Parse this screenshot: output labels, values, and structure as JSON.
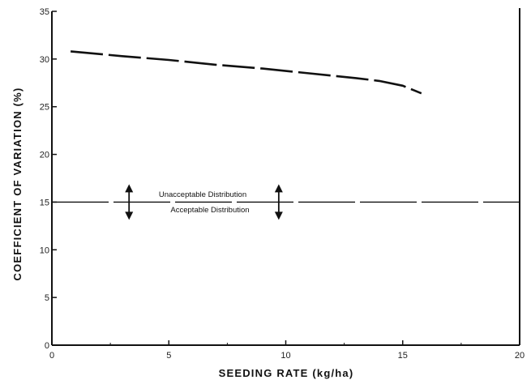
{
  "chart_data": {
    "type": "line",
    "xlabel": "SEEDING RATE (kg/ha)",
    "ylabel": "COEFFICIENT OF VARIATION (%)",
    "xlim": [
      0,
      20
    ],
    "ylim": [
      0,
      35
    ],
    "x_ticks": [
      0,
      5,
      10,
      15,
      20
    ],
    "y_ticks": [
      0,
      5,
      10,
      15,
      20,
      25,
      30,
      35
    ],
    "grid": false,
    "series": [
      {
        "style": "long-dash",
        "x": [
          0.8,
          3,
          5,
          7,
          9,
          11,
          13,
          14,
          15,
          15.8
        ],
        "y": [
          30.8,
          30.3,
          29.9,
          29.4,
          29.0,
          28.5,
          28.0,
          27.7,
          27.2,
          26.4
        ]
      }
    ],
    "threshold": {
      "y": 15,
      "style": "dashed",
      "label_above": "Unacceptable Distribution",
      "label_below": "Acceptable Distribution",
      "arrow_x": [
        3.3,
        9.7
      ]
    }
  }
}
